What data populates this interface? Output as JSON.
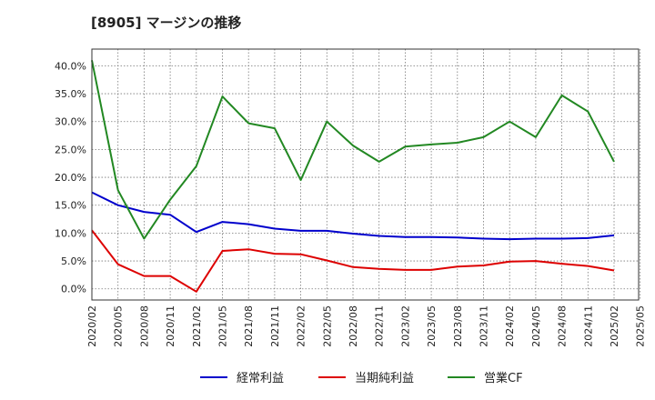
{
  "chart_data": {
    "type": "line",
    "title": "[8905]  マージンの推移",
    "xlabel": "",
    "ylabel": "",
    "ylim": [
      -0.02,
      0.43
    ],
    "yticks": [
      0,
      0.05,
      0.1,
      0.15,
      0.2,
      0.25,
      0.3,
      0.35,
      0.4
    ],
    "ytick_labels": [
      "0.0%",
      "5.0%",
      "10.0%",
      "15.0%",
      "20.0%",
      "25.0%",
      "30.0%",
      "35.0%",
      "40.0%"
    ],
    "xticks": [
      "2020/02",
      "2020/05",
      "2020/08",
      "2020/11",
      "2021/02",
      "2021/05",
      "2021/08",
      "2021/11",
      "2022/02",
      "2022/05",
      "2022/08",
      "2022/11",
      "2023/02",
      "2023/05",
      "2023/08",
      "2023/11",
      "2024/02",
      "2024/05",
      "2024/08",
      "2024/11",
      "2025/02",
      "2025/05"
    ],
    "x": [
      "2020/02",
      "2020/05",
      "2020/08",
      "2020/11",
      "2021/02",
      "2021/05",
      "2021/08",
      "2021/11",
      "2022/02",
      "2022/05",
      "2022/08",
      "2022/11",
      "2023/02",
      "2023/05",
      "2023/08",
      "2023/11",
      "2024/02",
      "2024/05",
      "2024/08",
      "2024/11",
      "2025/02"
    ],
    "grid": true,
    "legend_position": "bottom",
    "series": [
      {
        "name": "経常利益",
        "color": "#0000cc",
        "values": [
          0.173,
          0.15,
          0.138,
          0.133,
          0.102,
          0.12,
          0.116,
          0.108,
          0.104,
          0.104,
          0.099,
          0.095,
          0.093,
          0.093,
          0.092,
          0.09,
          0.089,
          0.09,
          0.09,
          0.091,
          0.096
        ]
      },
      {
        "name": "当期純利益",
        "color": "#dd0000",
        "values": [
          0.105,
          0.044,
          0.023,
          0.023,
          -0.005,
          0.068,
          0.071,
          0.063,
          0.062,
          0.051,
          0.039,
          0.036,
          0.034,
          0.034,
          0.04,
          0.042,
          0.049,
          0.05,
          0.045,
          0.041,
          0.033
        ]
      },
      {
        "name": "営業CF",
        "color": "#228822",
        "values": [
          0.41,
          0.177,
          0.09,
          0.16,
          0.22,
          0.345,
          0.297,
          0.288,
          0.195,
          0.3,
          0.257,
          0.228,
          0.255,
          0.259,
          0.262,
          0.272,
          0.3,
          0.272,
          0.347,
          0.318,
          0.228
        ]
      }
    ]
  }
}
